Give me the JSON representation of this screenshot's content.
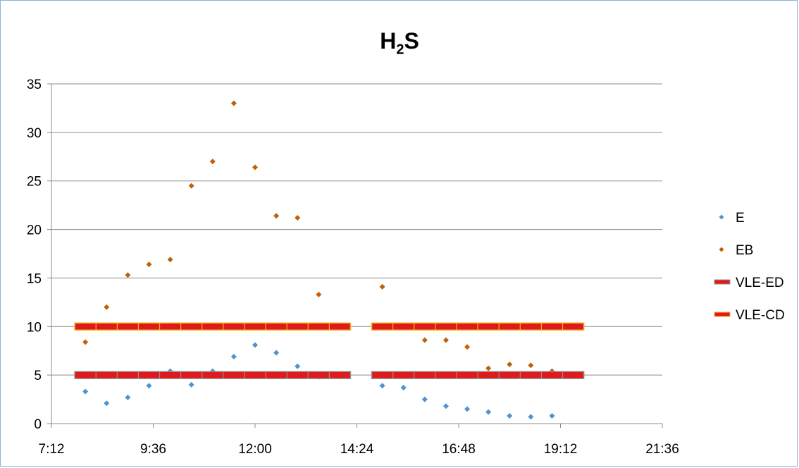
{
  "chart_data": {
    "type": "scatter",
    "title": {
      "main": "H",
      "sub": "2",
      "tail": "S"
    },
    "xlabel": "",
    "ylabel": "",
    "x_axis": {
      "min": "7:12",
      "max": "21:36",
      "tick_labels": [
        "7:12",
        "9:36",
        "12:00",
        "14:24",
        "16:48",
        "19:12",
        "21:36"
      ]
    },
    "y_axis": {
      "min": 0,
      "max": 35,
      "tick_labels": [
        "0",
        "5",
        "10",
        "15",
        "20",
        "25",
        "30",
        "35"
      ]
    },
    "grid": "horizontal",
    "legend_position": "right",
    "series": [
      {
        "name": "E",
        "kind": "points",
        "marker": "diamond",
        "color": "#4f93cf",
        "points": [
          [
            "8:00",
            3.3
          ],
          [
            "8:30",
            2.1
          ],
          [
            "9:00",
            2.7
          ],
          [
            "9:30",
            3.9
          ],
          [
            "10:00",
            5.4
          ],
          [
            "10:30",
            4.0
          ],
          [
            "11:00",
            5.4
          ],
          [
            "11:30",
            6.9
          ],
          [
            "12:00",
            8.1
          ],
          [
            "12:30",
            7.3
          ],
          [
            "13:00",
            5.9
          ],
          [
            "13:30",
            4.8
          ],
          [
            "15:00",
            3.9
          ],
          [
            "15:30",
            3.7
          ],
          [
            "16:00",
            2.5
          ],
          [
            "16:30",
            1.8
          ],
          [
            "17:00",
            1.5
          ],
          [
            "17:30",
            1.2
          ],
          [
            "18:00",
            0.8
          ],
          [
            "18:30",
            0.7
          ],
          [
            "19:00",
            0.8
          ]
        ]
      },
      {
        "name": "EB",
        "kind": "points",
        "marker": "diamond",
        "color": "#c0600c",
        "points": [
          [
            "8:00",
            8.4
          ],
          [
            "8:30",
            12.0
          ],
          [
            "9:00",
            15.3
          ],
          [
            "9:30",
            16.4
          ],
          [
            "10:00",
            16.9
          ],
          [
            "10:30",
            24.5
          ],
          [
            "11:00",
            27.0
          ],
          [
            "11:30",
            33.0
          ],
          [
            "12:00",
            26.4
          ],
          [
            "12:30",
            21.4
          ],
          [
            "13:00",
            21.2
          ],
          [
            "13:30",
            13.3
          ],
          [
            "15:00",
            14.1
          ],
          [
            "15:30",
            10.0
          ],
          [
            "16:00",
            8.6
          ],
          [
            "16:30",
            8.6
          ],
          [
            "17:00",
            7.9
          ],
          [
            "17:30",
            5.7
          ],
          [
            "18:00",
            6.1
          ],
          [
            "18:30",
            6.0
          ],
          [
            "19:00",
            5.4
          ]
        ]
      },
      {
        "name": "VLE-ED",
        "kind": "segments",
        "color": "#e0191c",
        "edge": "#8f8f8f",
        "value": 5,
        "segments": [
          [
            "7:45",
            "14:15"
          ],
          [
            "14:45",
            "19:45"
          ]
        ]
      },
      {
        "name": "VLE-CD",
        "kind": "segments",
        "color": "#e0191c",
        "edge": "#f2b51a",
        "value": 10,
        "segments": [
          [
            "7:45",
            "14:15"
          ],
          [
            "14:45",
            "19:45"
          ]
        ]
      }
    ]
  }
}
